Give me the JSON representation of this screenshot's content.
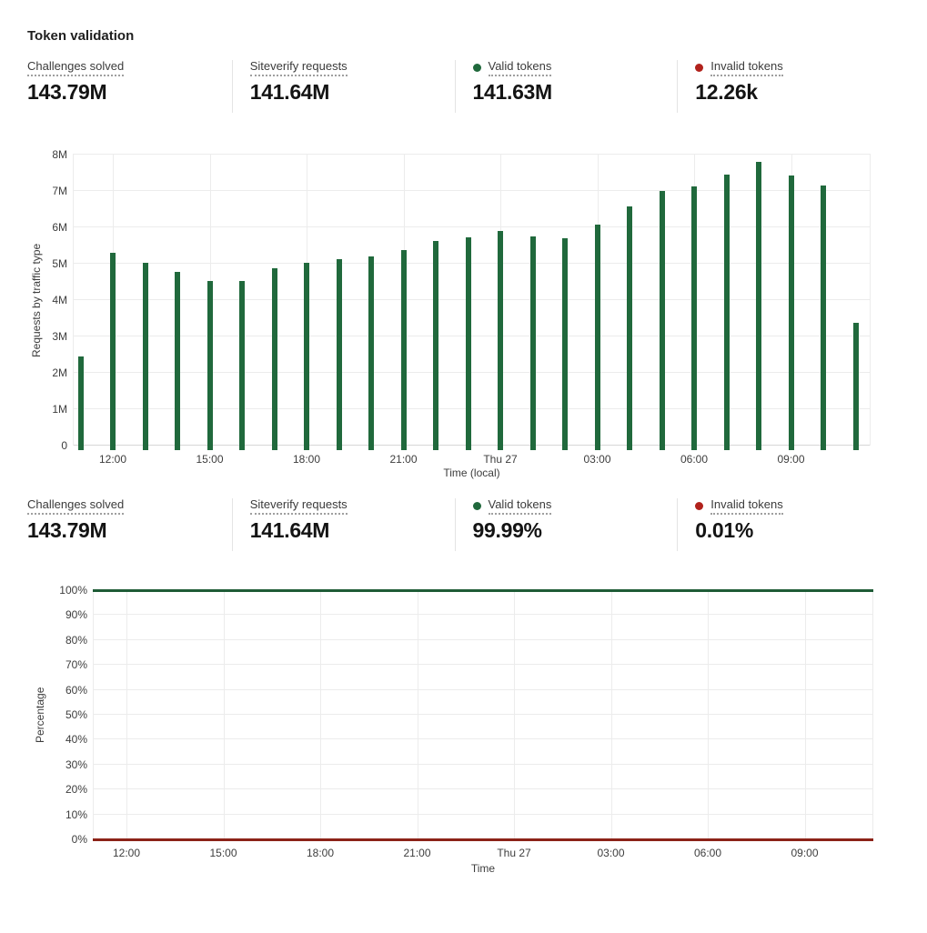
{
  "page": {
    "title": "Token validation"
  },
  "colors": {
    "valid_green": "#20693c",
    "invalid_red_dot": "#b1221c",
    "invalid_red_line": "#8c2318",
    "valid_green_line": "#1e5b36"
  },
  "stats_top": {
    "items": [
      {
        "label": "Challenges solved",
        "value": "143.79M"
      },
      {
        "label": "Siteverify requests",
        "value": "141.64M"
      },
      {
        "label": "Valid tokens",
        "value": "141.63M",
        "dot_color": "#20693c"
      },
      {
        "label": "Invalid tokens",
        "value": "12.26k",
        "dot_color": "#b1221c"
      }
    ]
  },
  "stats_bottom": {
    "items": [
      {
        "label": "Challenges solved",
        "value": "143.79M"
      },
      {
        "label": "Siteverify requests",
        "value": "141.64M"
      },
      {
        "label": "Valid tokens",
        "value": "99.99%",
        "dot_color": "#20693c"
      },
      {
        "label": "Invalid tokens",
        "value": "0.01%",
        "dot_color": "#b1221c"
      }
    ]
  },
  "chart_data": [
    {
      "type": "bar",
      "title": "Requests by traffic type",
      "ylabel": "Requests by traffic type",
      "xlabel": "Time (local)",
      "unit": "requests (millions)",
      "categories": [
        "11:00",
        "12:00",
        "13:00",
        "14:00",
        "15:00",
        "16:00",
        "17:00",
        "18:00",
        "19:00",
        "20:00",
        "21:00",
        "22:00",
        "23:00",
        "Thu 27 00:00",
        "01:00",
        "02:00",
        "03:00",
        "04:00",
        "05:00",
        "06:00",
        "07:00",
        "08:00",
        "09:00",
        "10:00",
        "11:00"
      ],
      "values": [
        2.46,
        5.31,
        5.02,
        4.78,
        4.53,
        4.52,
        4.88,
        5.02,
        5.13,
        5.2,
        5.38,
        5.63,
        5.72,
        5.89,
        5.76,
        5.69,
        6.08,
        6.57,
        7.01,
        7.12,
        7.46,
        7.81,
        7.43,
        7.16,
        3.37
      ],
      "ylim": [
        0,
        8
      ],
      "y_ticks": [
        "0",
        "1M",
        "2M",
        "3M",
        "4M",
        "5M",
        "6M",
        "7M",
        "8M"
      ],
      "x_tick_labels": [
        "12:00",
        "15:00",
        "18:00",
        "21:00",
        "Thu 27",
        "03:00",
        "06:00",
        "09:00"
      ],
      "bar_color": "#20693c",
      "grid": "on",
      "legend": "none"
    },
    {
      "type": "line",
      "title": "Percentage",
      "ylabel": "Percentage",
      "xlabel": "Time",
      "series": [
        {
          "name": "Valid tokens",
          "value_pct": 100,
          "color": "#1e5b36"
        },
        {
          "name": "Invalid tokens",
          "value_pct": 0,
          "color": "#8c2318"
        }
      ],
      "ylim": [
        0,
        100
      ],
      "y_ticks": [
        "0%",
        "10%",
        "20%",
        "30%",
        "40%",
        "50%",
        "60%",
        "70%",
        "80%",
        "90%",
        "100%"
      ],
      "x_tick_labels": [
        "12:00",
        "15:00",
        "18:00",
        "21:00",
        "Thu 27",
        "03:00",
        "06:00",
        "09:00"
      ],
      "grid": "on",
      "legend": "none"
    }
  ]
}
